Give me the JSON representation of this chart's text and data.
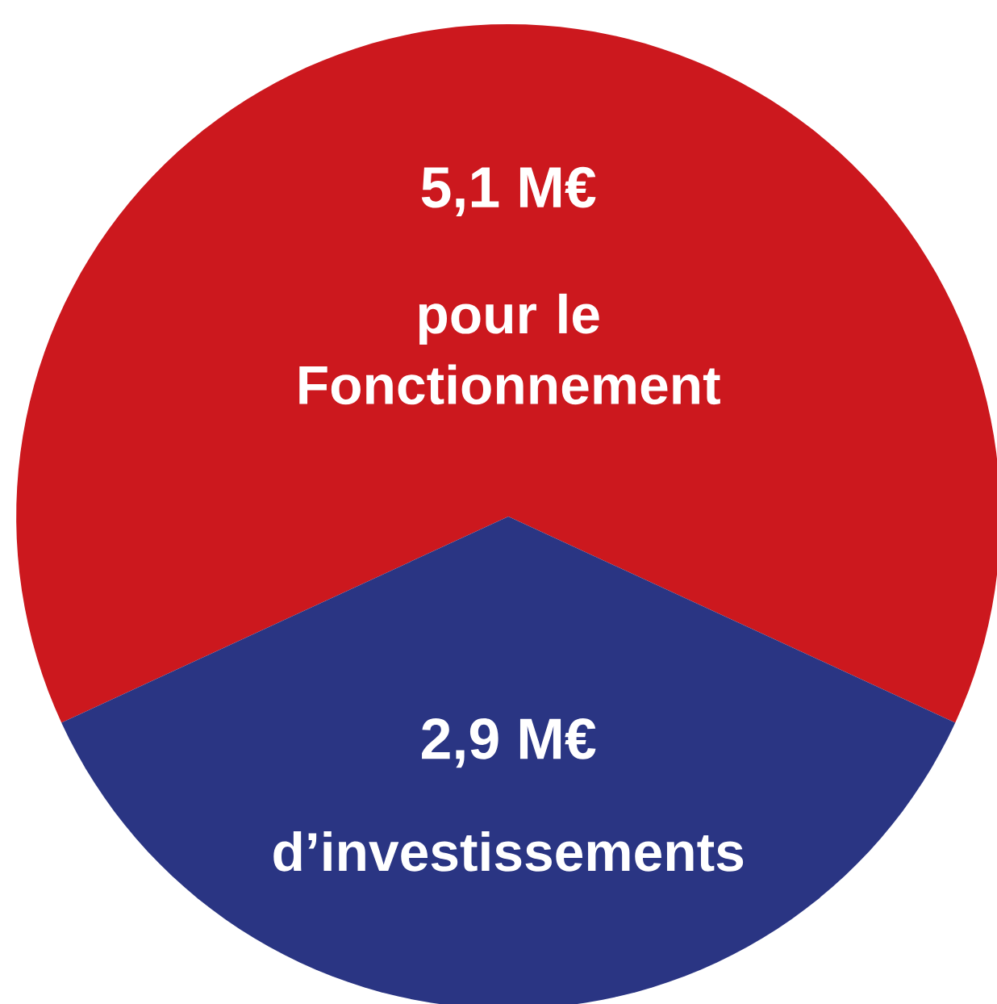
{
  "chart_data": {
    "type": "pie",
    "categories": [
      "pour le Fonctionnement",
      "d’investissements"
    ],
    "values": [
      5.1,
      2.9
    ],
    "value_labels": [
      "5,1 M€",
      "2,9 M€"
    ],
    "colors": [
      "#cc181e",
      "#2a3583"
    ]
  }
}
